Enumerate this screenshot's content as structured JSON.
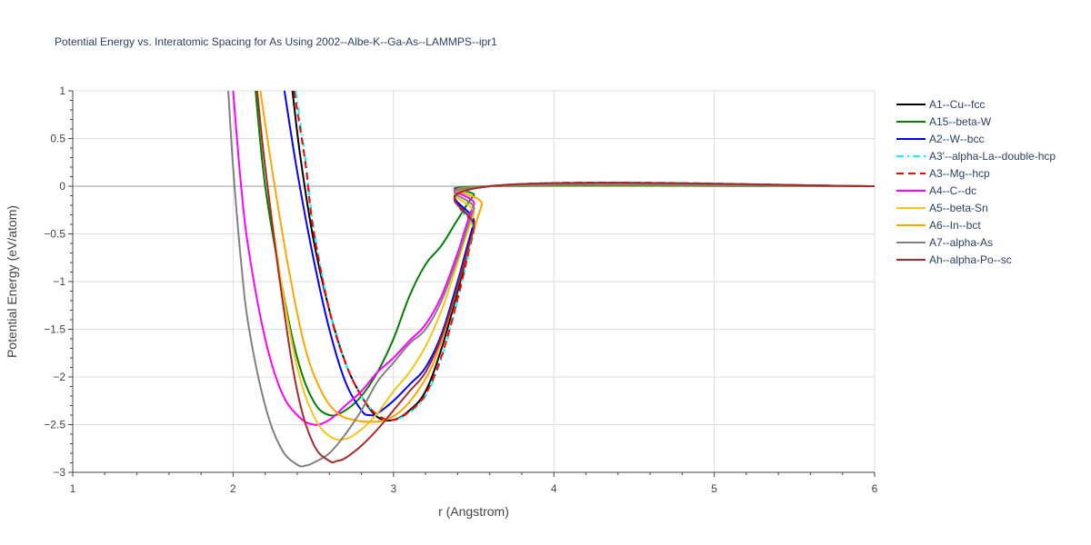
{
  "chart_data": {
    "type": "line",
    "title": "Potential Energy vs. Interatomic Spacing for As Using 2002--Albe-K--Ga-As--LAMMPS--ipr1",
    "xlabel": "r (Angstrom)",
    "ylabel": "Potential Energy (eV/atom)",
    "xlim": [
      1,
      6
    ],
    "ylim": [
      -3,
      1
    ],
    "x_ticks": [
      1,
      2,
      3,
      4,
      5,
      6
    ],
    "x_tick_labels": [
      "1",
      "2",
      "3",
      "4",
      "5",
      "6"
    ],
    "y_ticks": [
      1,
      0.5,
      0,
      -0.5,
      -1,
      -1.5,
      -2,
      -2.5,
      -3
    ],
    "y_tick_labels": [
      "1",
      "0.5",
      "0",
      "−0.5",
      "−1",
      "−1.5",
      "−2",
      "−2.5",
      "−3"
    ],
    "grid": true,
    "legend_position": "right",
    "series": [
      {
        "name": "A1--Cu--fcc",
        "color": "#000000",
        "dash": "solid",
        "points": [
          [
            2.37,
            1.0
          ],
          [
            2.42,
            0.3
          ],
          [
            2.5,
            -0.55
          ],
          [
            2.6,
            -1.3
          ],
          [
            2.7,
            -1.85
          ],
          [
            2.8,
            -2.2
          ],
          [
            2.9,
            -2.42
          ],
          [
            3.0,
            -2.45
          ],
          [
            3.1,
            -2.35
          ],
          [
            3.2,
            -2.15
          ],
          [
            3.3,
            -1.7
          ],
          [
            3.4,
            -1.1
          ],
          [
            3.5,
            -0.45
          ],
          [
            3.6,
            0.0
          ],
          [
            6.0,
            0.0
          ]
        ]
      },
      {
        "name": "A15--beta-W",
        "color": "#008000",
        "dash": "solid",
        "points": [
          [
            2.14,
            1.0
          ],
          [
            2.2,
            0.0
          ],
          [
            2.3,
            -1.0
          ],
          [
            2.4,
            -1.8
          ],
          [
            2.5,
            -2.25
          ],
          [
            2.6,
            -2.4
          ],
          [
            2.7,
            -2.35
          ],
          [
            2.8,
            -2.2
          ],
          [
            2.9,
            -1.95
          ],
          [
            3.0,
            -1.6
          ],
          [
            3.1,
            -1.15
          ],
          [
            3.2,
            -0.82
          ],
          [
            3.3,
            -0.62
          ],
          [
            3.4,
            -0.35
          ],
          [
            3.5,
            -0.1
          ],
          [
            3.6,
            0.0
          ],
          [
            6.0,
            0.0
          ]
        ]
      },
      {
        "name": "A2--W--bcc",
        "color": "#0000ff",
        "dash": "solid",
        "points": [
          [
            2.32,
            1.0
          ],
          [
            2.4,
            0.15
          ],
          [
            2.5,
            -0.75
          ],
          [
            2.6,
            -1.5
          ],
          [
            2.7,
            -2.05
          ],
          [
            2.8,
            -2.35
          ],
          [
            2.85,
            -2.4
          ],
          [
            2.9,
            -2.38
          ],
          [
            3.0,
            -2.25
          ],
          [
            3.1,
            -2.08
          ],
          [
            3.2,
            -1.9
          ],
          [
            3.3,
            -1.55
          ],
          [
            3.4,
            -1.0
          ],
          [
            3.5,
            -0.4
          ],
          [
            3.6,
            0.0
          ],
          [
            6.0,
            0.0
          ]
        ]
      },
      {
        "name": "A3'--alpha-La--double-hcp",
        "color": "#00ffff",
        "dash": "dashdot",
        "points": [
          [
            2.39,
            1.0
          ],
          [
            2.45,
            0.3
          ],
          [
            2.5,
            -0.4
          ],
          [
            2.6,
            -1.3
          ],
          [
            2.7,
            -1.85
          ],
          [
            2.8,
            -2.2
          ],
          [
            2.9,
            -2.4
          ],
          [
            3.0,
            -2.45
          ],
          [
            3.1,
            -2.37
          ],
          [
            3.2,
            -2.2
          ],
          [
            3.3,
            -1.8
          ],
          [
            3.4,
            -1.2
          ],
          [
            3.5,
            -0.5
          ],
          [
            3.6,
            0.0
          ],
          [
            6.0,
            0.0
          ]
        ]
      },
      {
        "name": "A3--Mg--hcp",
        "color": "#ff0000",
        "dash": "dash",
        "points": [
          [
            2.38,
            1.0
          ],
          [
            2.45,
            0.25
          ],
          [
            2.5,
            -0.45
          ],
          [
            2.6,
            -1.3
          ],
          [
            2.7,
            -1.85
          ],
          [
            2.8,
            -2.2
          ],
          [
            2.9,
            -2.4
          ],
          [
            3.0,
            -2.45
          ],
          [
            3.1,
            -2.36
          ],
          [
            3.2,
            -2.18
          ],
          [
            3.3,
            -1.78
          ],
          [
            3.4,
            -1.18
          ],
          [
            3.5,
            -0.48
          ],
          [
            3.6,
            0.0
          ],
          [
            6.0,
            0.0
          ]
        ]
      },
      {
        "name": "A4--C--dc",
        "color": "#ff00ff",
        "dash": "solid",
        "points": [
          [
            2.0,
            1.0
          ],
          [
            2.05,
            0.0
          ],
          [
            2.1,
            -0.7
          ],
          [
            2.2,
            -1.6
          ],
          [
            2.3,
            -2.15
          ],
          [
            2.4,
            -2.4
          ],
          [
            2.5,
            -2.5
          ],
          [
            2.6,
            -2.45
          ],
          [
            2.7,
            -2.3
          ],
          [
            2.8,
            -2.15
          ],
          [
            2.9,
            -1.95
          ],
          [
            3.0,
            -1.8
          ],
          [
            3.1,
            -1.62
          ],
          [
            3.2,
            -1.45
          ],
          [
            3.3,
            -1.15
          ],
          [
            3.4,
            -0.7
          ],
          [
            3.5,
            -0.2
          ],
          [
            3.6,
            0.0
          ],
          [
            6.0,
            0.0
          ]
        ]
      },
      {
        "name": "A5--beta-Sn",
        "color": "#f5c518",
        "dash": "solid",
        "points": [
          [
            2.15,
            1.0
          ],
          [
            2.2,
            0.2
          ],
          [
            2.3,
            -1.0
          ],
          [
            2.4,
            -1.9
          ],
          [
            2.5,
            -2.4
          ],
          [
            2.6,
            -2.62
          ],
          [
            2.7,
            -2.65
          ],
          [
            2.8,
            -2.55
          ],
          [
            2.9,
            -2.38
          ],
          [
            3.0,
            -2.15
          ],
          [
            3.1,
            -1.95
          ],
          [
            3.2,
            -1.68
          ],
          [
            3.3,
            -1.3
          ],
          [
            3.4,
            -0.8
          ],
          [
            3.5,
            -0.3
          ],
          [
            3.6,
            0.0
          ],
          [
            6.0,
            0.0
          ]
        ]
      },
      {
        "name": "A6--In--bct",
        "color": "#ffa500",
        "dash": "solid",
        "points": [
          [
            2.17,
            1.0
          ],
          [
            2.25,
            0.1
          ],
          [
            2.35,
            -0.9
          ],
          [
            2.45,
            -1.7
          ],
          [
            2.55,
            -2.15
          ],
          [
            2.65,
            -2.38
          ],
          [
            2.75,
            -2.45
          ],
          [
            2.85,
            -2.47
          ],
          [
            2.95,
            -2.45
          ],
          [
            3.05,
            -2.35
          ],
          [
            3.15,
            -2.15
          ],
          [
            3.25,
            -1.85
          ],
          [
            3.35,
            -1.35
          ],
          [
            3.45,
            -0.75
          ],
          [
            3.55,
            -0.2
          ],
          [
            3.6,
            0.0
          ],
          [
            6.0,
            0.0
          ]
        ]
      },
      {
        "name": "A7--alpha-As",
        "color": "#808080",
        "dash": "solid",
        "points": [
          [
            1.97,
            1.0
          ],
          [
            2.0,
            0.2
          ],
          [
            2.05,
            -0.8
          ],
          [
            2.1,
            -1.5
          ],
          [
            2.2,
            -2.3
          ],
          [
            2.3,
            -2.75
          ],
          [
            2.4,
            -2.92
          ],
          [
            2.45,
            -2.93
          ],
          [
            2.5,
            -2.9
          ],
          [
            2.6,
            -2.8
          ],
          [
            2.7,
            -2.6
          ],
          [
            2.8,
            -2.35
          ],
          [
            2.9,
            -2.05
          ],
          [
            3.0,
            -1.85
          ],
          [
            3.1,
            -1.65
          ],
          [
            3.2,
            -1.5
          ],
          [
            3.3,
            -1.2
          ],
          [
            3.4,
            -0.75
          ],
          [
            3.5,
            -0.25
          ],
          [
            3.6,
            0.0
          ],
          [
            6.0,
            0.0
          ]
        ]
      },
      {
        "name": "Ah--alpha-Po--sc",
        "color": "#a52a2a",
        "dash": "solid",
        "points": [
          [
            2.15,
            1.0
          ],
          [
            2.2,
            0.2
          ],
          [
            2.3,
            -1.1
          ],
          [
            2.4,
            -2.15
          ],
          [
            2.5,
            -2.7
          ],
          [
            2.6,
            -2.88
          ],
          [
            2.65,
            -2.88
          ],
          [
            2.7,
            -2.85
          ],
          [
            2.8,
            -2.72
          ],
          [
            2.9,
            -2.55
          ],
          [
            3.0,
            -2.35
          ],
          [
            3.1,
            -2.15
          ],
          [
            3.2,
            -1.95
          ],
          [
            3.3,
            -1.58
          ],
          [
            3.4,
            -1.05
          ],
          [
            3.5,
            -0.45
          ],
          [
            3.6,
            0.0
          ],
          [
            6.0,
            0.0
          ]
        ]
      }
    ]
  }
}
